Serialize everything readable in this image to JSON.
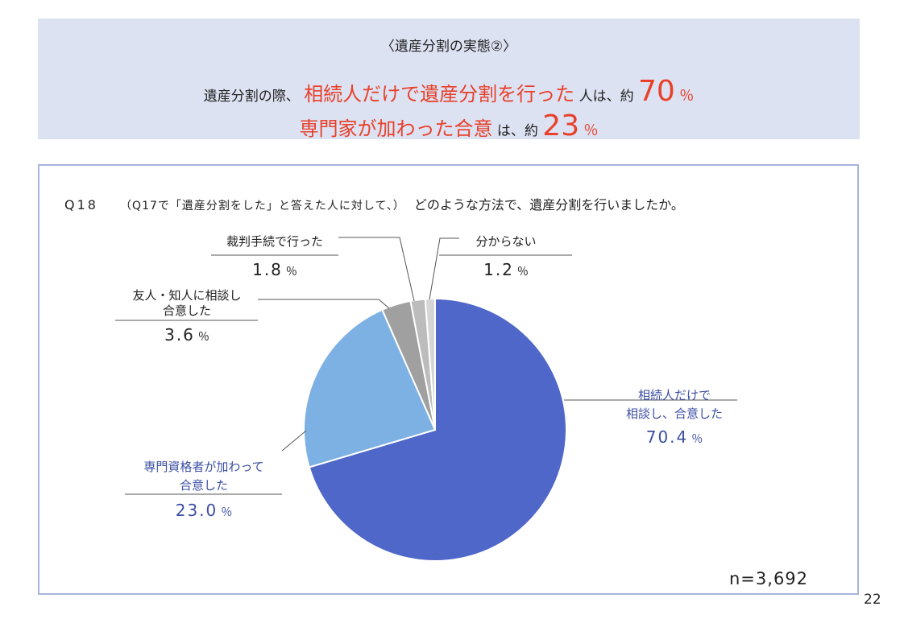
{
  "banner": {
    "subtitle": "〈遺産分割の実態②〉",
    "line1": {
      "pre": "遺産分割の際、",
      "highlight": "相続人だけで遺産分割を行った",
      "post": "人は、約",
      "value": "70",
      "unit": "％"
    },
    "line2": {
      "highlight": "専門家が加わった合意",
      "post": "は、約",
      "value": "23",
      "unit": "％"
    }
  },
  "question": {
    "number": "Q18",
    "prefix": "（Q17で「遺産分割をした」と答えた人に対して、）",
    "text": "どのような方法で、遺産分割を行いましたか。"
  },
  "sample": "n=3,692",
  "page_number": "22",
  "chart_data": {
    "type": "pie",
    "title": "",
    "slices": [
      {
        "label": "相続人だけで相談し、合意した",
        "label_lines": [
          "相続人だけで",
          "相談し、合意した"
        ],
        "value": 70.4,
        "display": "70.4",
        "unit": "％",
        "color": "#4f67c8",
        "text_color": "#3c4fa3"
      },
      {
        "label": "専門資格者が加わって合意した",
        "label_lines": [
          "専門資格者が加わって",
          "合意した"
        ],
        "value": 23.0,
        "display": "23.0",
        "unit": "％",
        "color": "#7db1e3",
        "text_color": "#3c4fa3"
      },
      {
        "label": "友人・知人に相談し合意した",
        "label_lines": [
          "友人・知人に相談し",
          "合意した"
        ],
        "value": 3.6,
        "display": "3.6",
        "unit": "％",
        "color": "#a0a0a0",
        "text_color": "#222222"
      },
      {
        "label": "裁判手続で行った",
        "label_lines": [
          "裁判手続で行った"
        ],
        "value": 1.8,
        "display": "1.8",
        "unit": "％",
        "color": "#bcbcbc",
        "text_color": "#222222"
      },
      {
        "label": "分からない",
        "label_lines": [
          "分からない"
        ],
        "value": 1.2,
        "display": "1.2",
        "unit": "％",
        "color": "#d6d6d6",
        "text_color": "#222222"
      }
    ]
  }
}
